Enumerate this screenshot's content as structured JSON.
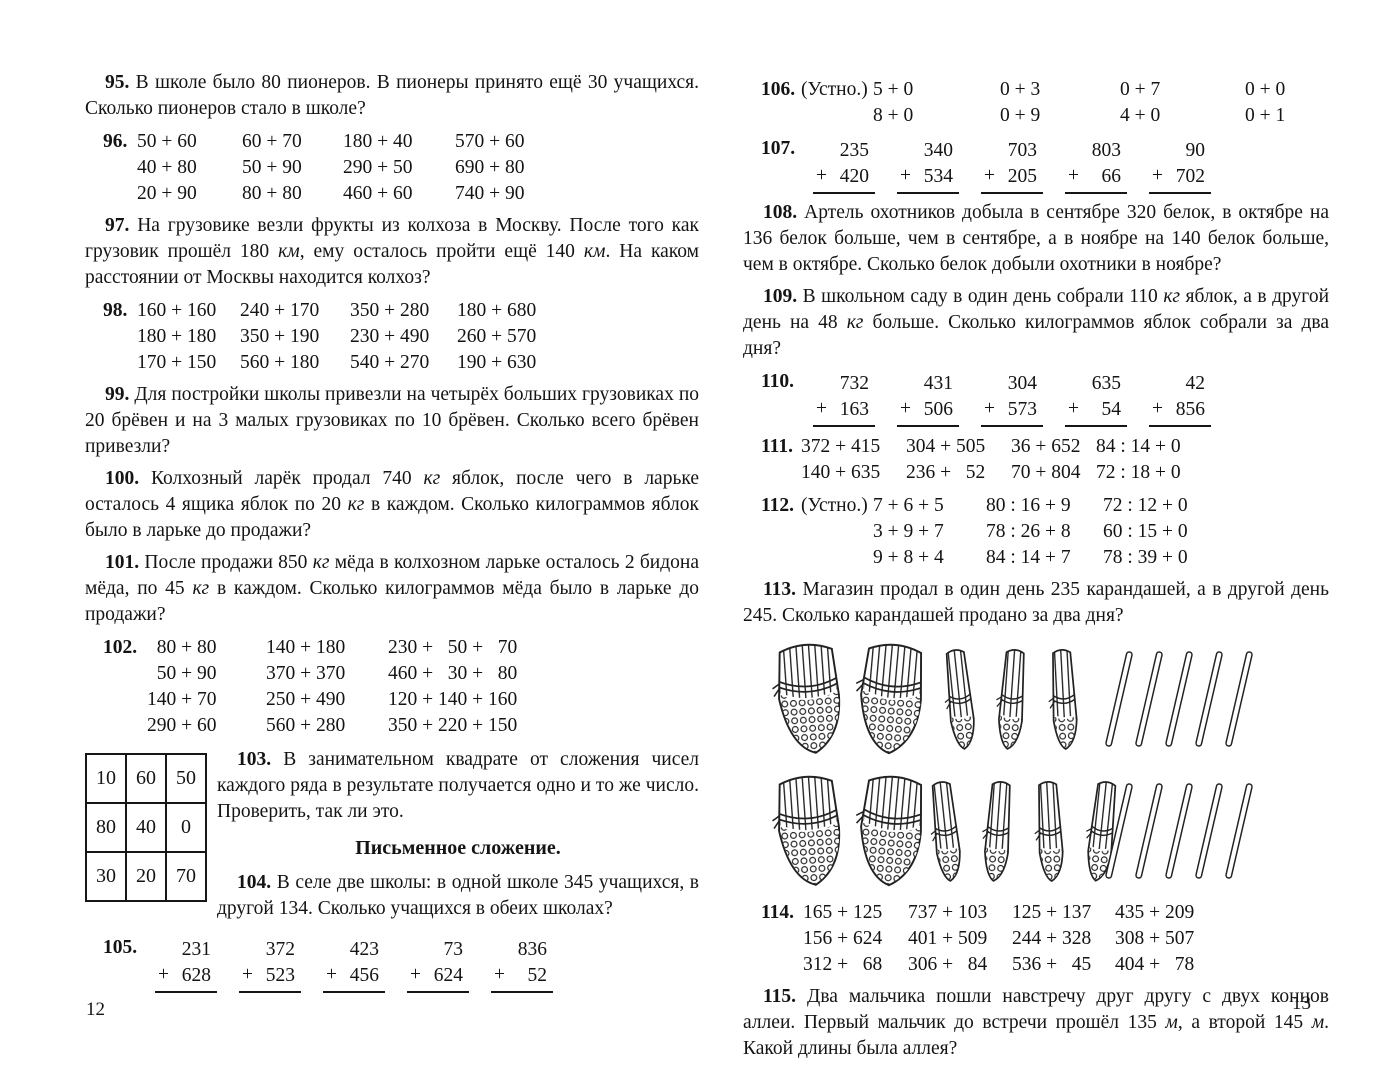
{
  "left_page": {
    "page_number": "12",
    "p95": {
      "num": "95.",
      "text": "В школе было 80 пионеров. В пионеры принято ещё 30 учащихся. Сколько пионеров стало в школе?"
    },
    "p96": {
      "num": "96.",
      "items": [
        "50 + 60",
        "60 + 70",
        "180 + 40",
        "570 + 60",
        "40 + 80",
        "50 + 90",
        "290 + 50",
        "690 + 80",
        "20 + 90",
        "80 + 80",
        "460 + 60",
        "740 + 90"
      ]
    },
    "p97": {
      "num": "97.",
      "parts": [
        {
          "t": "На грузовике везли фрукты из колхоза в Москву. После того как грузовик прошёл 180 "
        },
        {
          "t": "км",
          "i": true
        },
        {
          "t": ", ему осталось пройти ещё 140 "
        },
        {
          "t": "км",
          "i": true
        },
        {
          "t": ". На каком расстоянии от Москвы находится колхоз?"
        }
      ]
    },
    "p98": {
      "num": "98.",
      "items": [
        "160 + 160",
        "240 + 170",
        "350 + 280",
        "180 + 680",
        "180 + 180",
        "350 + 190",
        "230 + 490",
        "260 + 570",
        "170 + 150",
        "560 + 180",
        "540 + 270",
        "190 + 630"
      ]
    },
    "p99": {
      "num": "99.",
      "text": "Для постройки школы привезли на четырёх больших грузовиках по 20 брёвен и на 3 малых грузовиках по 10 брёвен. Сколько всего брёвен привезли?"
    },
    "p100": {
      "num": "100.",
      "parts": [
        {
          "t": "Колхозный ларёк продал 740 "
        },
        {
          "t": "кг",
          "i": true
        },
        {
          "t": " яблок, после чего в ларьке осталось 4 ящика яблок по 20 "
        },
        {
          "t": "кг",
          "i": true
        },
        {
          "t": " в каждом. Сколько килограммов яблок было в ларьке до продажи?"
        }
      ]
    },
    "p101": {
      "num": "101.",
      "parts": [
        {
          "t": "После продажи 850 "
        },
        {
          "t": "кг",
          "i": true
        },
        {
          "t": " мёда в колхозном ларьке осталось 2 бидона мёда, по 45 "
        },
        {
          "t": "кг",
          "i": true
        },
        {
          "t": " в каждом. Сколько килограммов мёда было в ларьке до продажи?"
        }
      ]
    },
    "p102": {
      "num": "102.",
      "items": [
        " 80 + 80",
        "140 + 180",
        "230 +  50 +  70",
        " 50 + 90",
        "370 + 370",
        "460 +  30 +  80",
        "140 + 70",
        "250 + 490",
        "120 + 140 + 160",
        "290 + 60",
        "560 + 280",
        "350 + 220 + 150"
      ]
    },
    "magic_square": [
      [
        "10",
        "60",
        "50"
      ],
      [
        "80",
        "40",
        "0"
      ],
      [
        "30",
        "20",
        "70"
      ]
    ],
    "p103": {
      "num": "103.",
      "text": "В занимательном квадрате от сложения чисел каждого ряда в результате получается одно и то же число. Проверить, так ли это."
    },
    "section_heading": "Письменное сложение.",
    "p104": {
      "num": "104.",
      "text": "В селе две школы: в одной школе 345 учащихся, в другой 134. Сколько учащихся в обеих школах?"
    },
    "p105": {
      "num": "105.",
      "sums": [
        [
          "231",
          "628"
        ],
        [
          "372",
          "523"
        ],
        [
          "423",
          "456"
        ],
        [
          "73",
          "624"
        ],
        [
          "836",
          "52"
        ]
      ]
    }
  },
  "right_page": {
    "page_number": "13",
    "p106": {
      "num": "106.",
      "label": "(Устно.)",
      "items": [
        "5 + 0",
        "0 + 3",
        "0 + 7",
        "0 + 0",
        "8 + 0",
        "0 + 9",
        "4 + 0",
        "0 + 1"
      ]
    },
    "p107": {
      "num": "107.",
      "sums": [
        [
          "235",
          "420"
        ],
        [
          "340",
          "534"
        ],
        [
          "703",
          "205"
        ],
        [
          "803",
          "66"
        ],
        [
          "90",
          "702"
        ]
      ]
    },
    "p108": {
      "num": "108.",
      "text": "Артель охотников добыла в сентябре 320 белок, в октябре на 136 белок больше, чем в сентябре, а в ноябре на 140 белок больше, чем в октябре. Сколько белок добыли охотники в ноябре?"
    },
    "p109": {
      "num": "109.",
      "parts": [
        {
          "t": "В школьном саду в один день собрали 110 "
        },
        {
          "t": "кг",
          "i": true
        },
        {
          "t": " яблок, а в другой день на 48 "
        },
        {
          "t": "кг",
          "i": true
        },
        {
          "t": " больше. Сколько килограммов яблок собрали за два дня?"
        }
      ]
    },
    "p110": {
      "num": "110.",
      "sums": [
        [
          "732",
          "163"
        ],
        [
          "431",
          "506"
        ],
        [
          "304",
          "573"
        ],
        [
          "635",
          "54"
        ],
        [
          "42",
          "856"
        ]
      ]
    },
    "p111": {
      "num": "111.",
      "items": [
        "372 + 415",
        "304 + 505",
        "36 + 652",
        "84 : 14 + 0",
        "140 + 635",
        "236 +  52",
        "70 + 804",
        "72 : 18 + 0"
      ]
    },
    "p112": {
      "num": "112.",
      "label": "(Устно.)",
      "items": [
        "7 + 6 + 5",
        "80 : 16 + 9",
        "72 : 12 + 0",
        "3 + 9 + 7",
        "78 : 26 + 8",
        "60 : 15 + 0",
        "9 + 8 + 4",
        "84 : 14 + 7",
        "78 : 39 + 0"
      ]
    },
    "p113": {
      "num": "113.",
      "text": "Магазин продал в один день 235 карандашей, а в другой день 245. Сколько карандашей продано за два дня?"
    },
    "illustration": {
      "rows": [
        {
          "hundreds": 2,
          "tens": 3,
          "ones": 5
        },
        {
          "hundreds": 2,
          "tens": 4,
          "ones": 5
        }
      ]
    },
    "p114": {
      "num": "114.",
      "items": [
        "165 + 125",
        "737 + 103",
        "125 + 137",
        "435 + 209",
        "156 + 624",
        "401 + 509",
        "244 + 328",
        "308 + 507",
        "312 +  68",
        "306 +  84",
        "536 +  45",
        "404 +  78"
      ]
    },
    "p115": {
      "num": "115.",
      "parts": [
        {
          "t": "Два мальчика пошли навстречу друг другу с двух концов аллеи. Первый мальчик до встречи прошёл 135 "
        },
        {
          "t": "м",
          "i": true
        },
        {
          "t": ", а второй 145 "
        },
        {
          "t": "м",
          "i": true
        },
        {
          "t": ". Какой длины была аллея?"
        }
      ]
    }
  }
}
